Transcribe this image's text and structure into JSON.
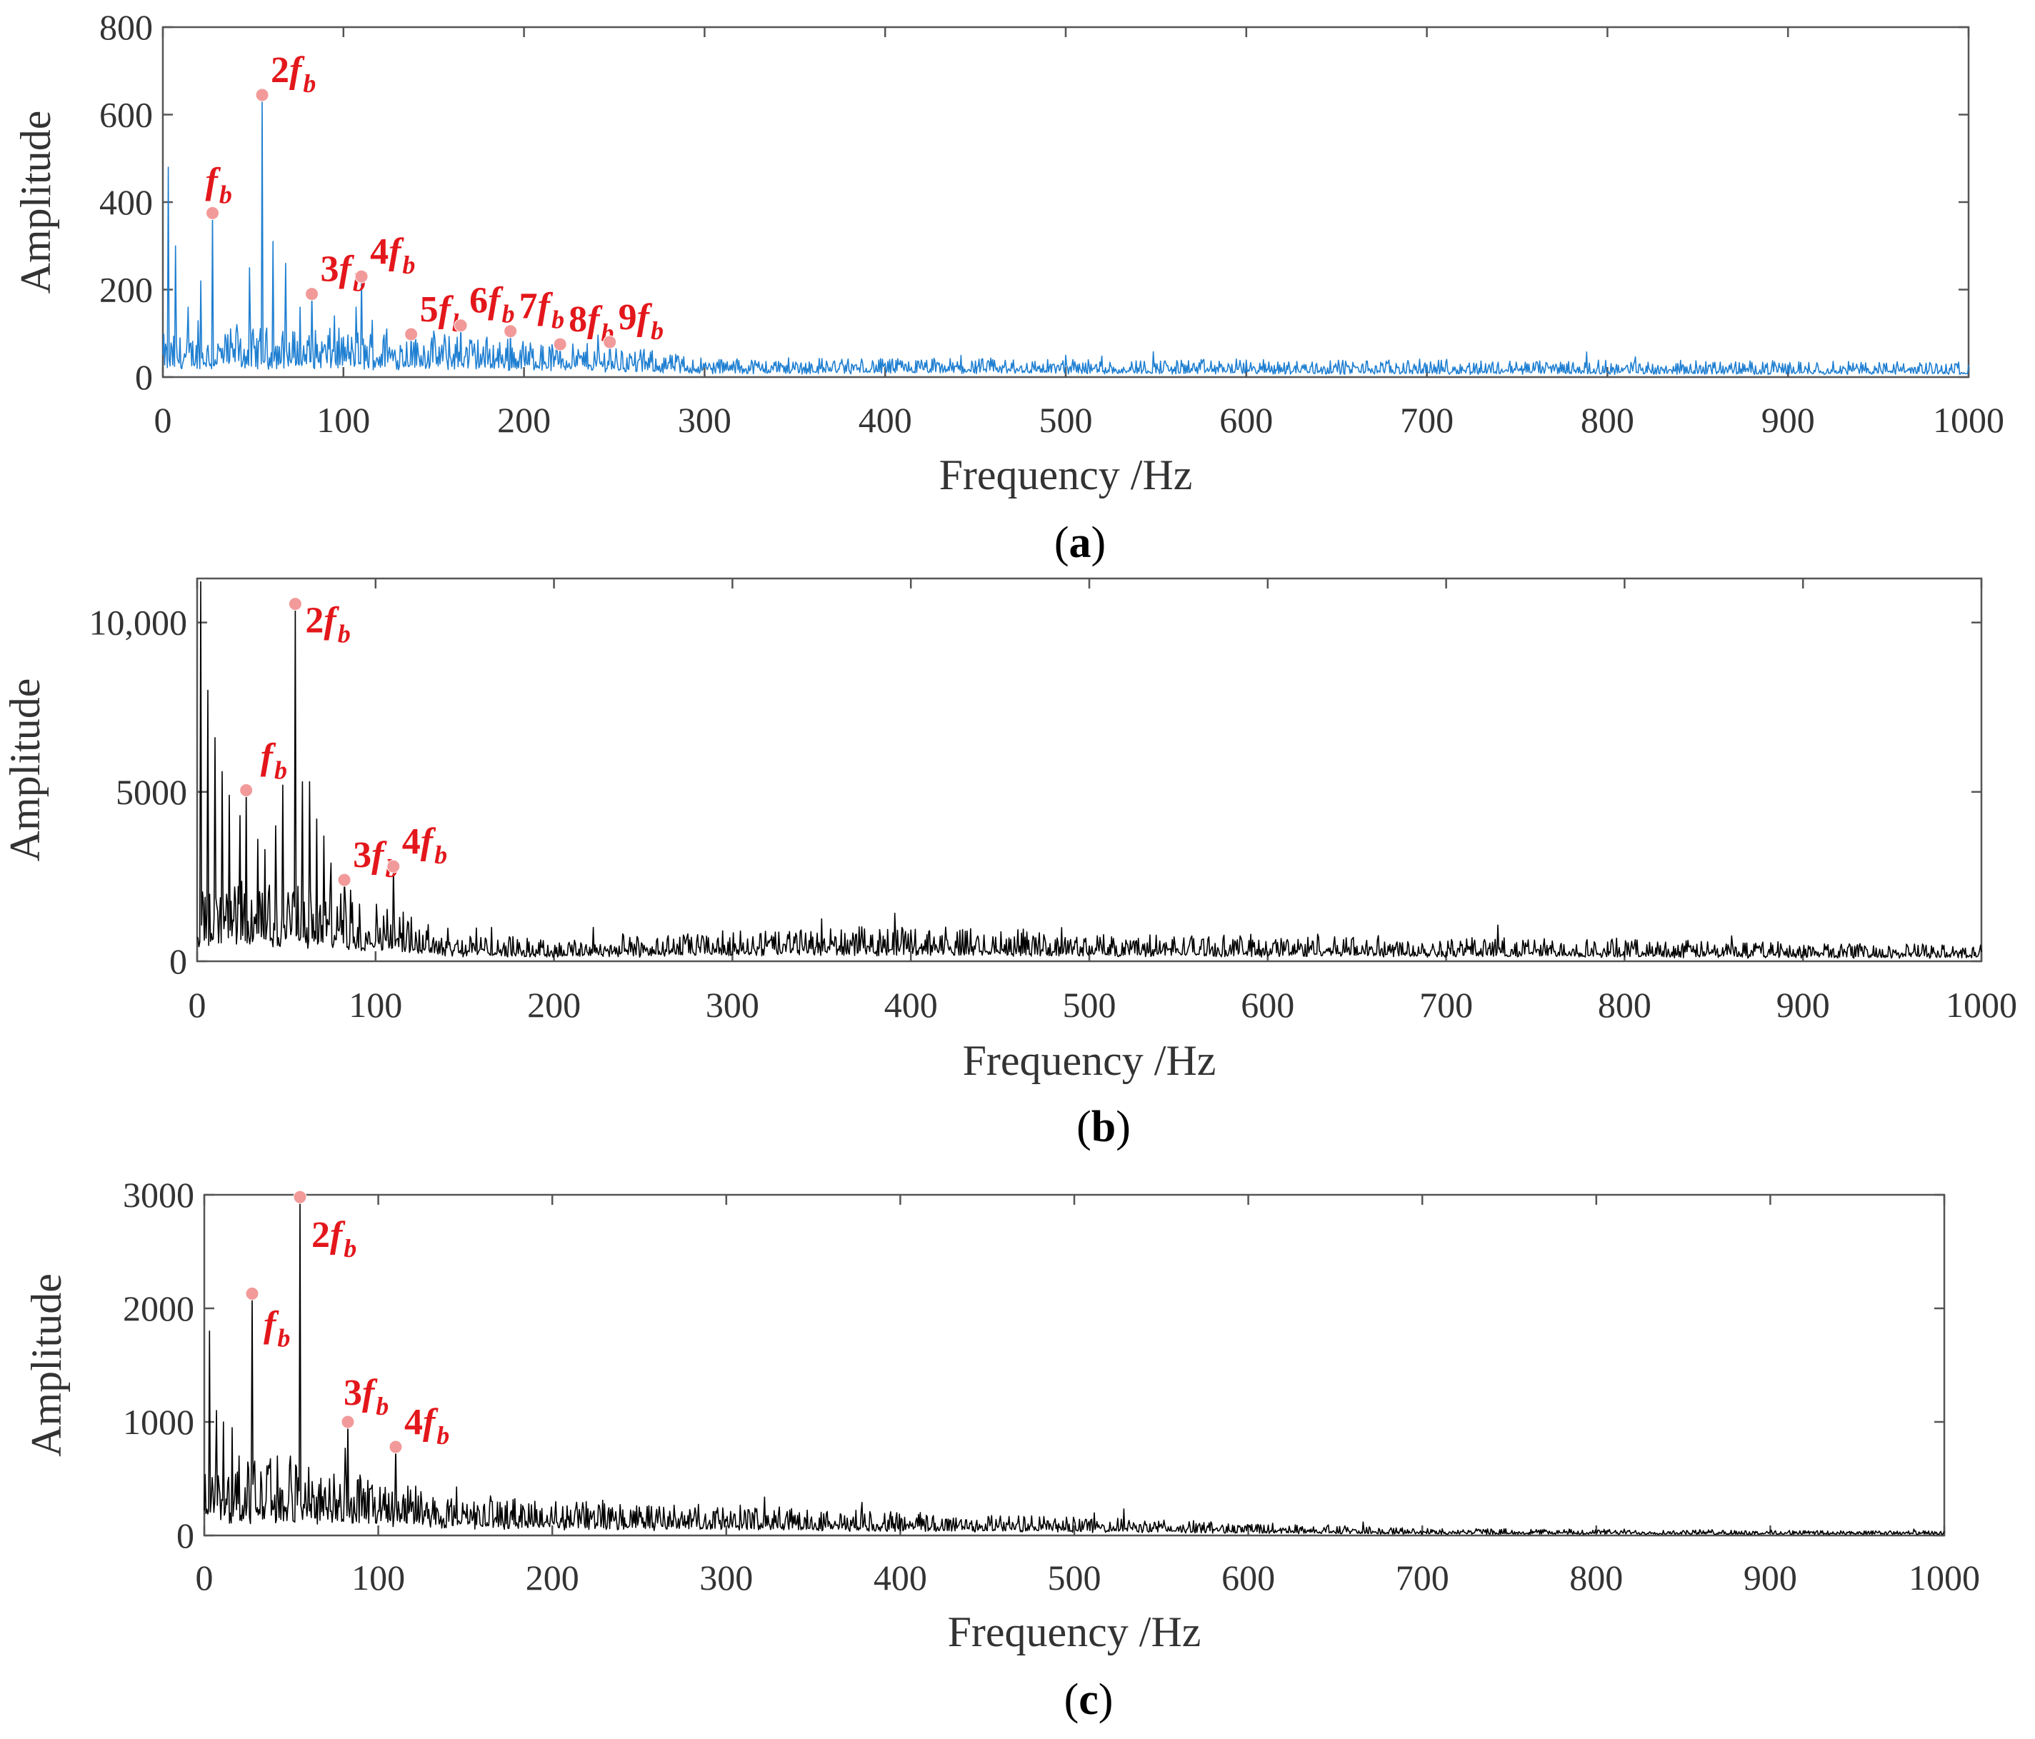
{
  "chart_data": [
    {
      "type": "line",
      "panel_label": "a",
      "xlabel": "Frequency /Hz",
      "ylabel": "Amplitude",
      "xlim": [
        0,
        1000
      ],
      "ylim": [
        0,
        800
      ],
      "xticks": [
        "0",
        "100",
        "200",
        "300",
        "400",
        "500",
        "600",
        "700",
        "800",
        "900",
        "1000"
      ],
      "yticks": [
        {
          "value": 0,
          "label": "0"
        },
        {
          "value": 200,
          "label": "200"
        },
        {
          "value": 400,
          "label": "400"
        },
        {
          "value": 600,
          "label": "600"
        },
        {
          "value": 800,
          "label": "800"
        }
      ],
      "series_color": "#1f7fd1",
      "marker_color": "#f29a9a",
      "label_color": "#e3171b",
      "noise_profile": [
        [
          0,
          60
        ],
        [
          50,
          70
        ],
        [
          150,
          65
        ],
        [
          250,
          45
        ],
        [
          300,
          28
        ],
        [
          600,
          25
        ],
        [
          1000,
          22
        ]
      ],
      "extra_spikes": [
        [
          3,
          480
        ],
        [
          7,
          300
        ],
        [
          14,
          160
        ],
        [
          21,
          220
        ],
        [
          41,
          120
        ],
        [
          48,
          250
        ],
        [
          61,
          310
        ],
        [
          68,
          260
        ],
        [
          76,
          160
        ],
        [
          95,
          140
        ],
        [
          107,
          160
        ],
        [
          116,
          130
        ],
        [
          124,
          110
        ],
        [
          150,
          90
        ],
        [
          500,
          50
        ],
        [
          520,
          48
        ]
      ],
      "peaks": [
        {
          "x": 27.5,
          "y": 375,
          "mult": "",
          "sub": "b"
        },
        {
          "x": 55,
          "y": 645,
          "mult": "2",
          "sub": "b"
        },
        {
          "x": 82.5,
          "y": 190,
          "mult": "3",
          "sub": "b"
        },
        {
          "x": 110,
          "y": 230,
          "mult": "4",
          "sub": "b"
        },
        {
          "x": 137.5,
          "y": 98,
          "mult": "5",
          "sub": "b"
        },
        {
          "x": 165,
          "y": 118,
          "mult": "6",
          "sub": "b"
        },
        {
          "x": 192.5,
          "y": 105,
          "mult": "7",
          "sub": "b"
        },
        {
          "x": 220,
          "y": 75,
          "mult": "8",
          "sub": "b"
        },
        {
          "x": 247.5,
          "y": 80,
          "mult": "9",
          "sub": "b"
        }
      ]
    },
    {
      "type": "line",
      "panel_label": "b",
      "xlabel": "Frequency /Hz",
      "ylabel": "Amplitude",
      "xlim": [
        0,
        1000
      ],
      "ylim": [
        0,
        11300
      ],
      "xticks": [
        "0",
        "100",
        "200",
        "300",
        "400",
        "500",
        "600",
        "700",
        "800",
        "900",
        "1000"
      ],
      "yticks": [
        {
          "value": 0,
          "label": "0"
        },
        {
          "value": 5000,
          "label": "5000"
        },
        {
          "value": 10000,
          "label": "10,000"
        }
      ],
      "series_color": "#000000",
      "marker_color": "#f29a9a",
      "label_color": "#e3171b",
      "noise_profile": [
        [
          0,
          1300
        ],
        [
          50,
          1500
        ],
        [
          100,
          1100
        ],
        [
          150,
          500
        ],
        [
          200,
          400
        ],
        [
          300,
          550
        ],
        [
          400,
          650
        ],
        [
          500,
          500
        ],
        [
          700,
          450
        ],
        [
          1000,
          300
        ]
      ],
      "extra_spikes": [
        [
          2,
          11200
        ],
        [
          6,
          8000
        ],
        [
          10,
          6600
        ],
        [
          14,
          5600
        ],
        [
          18,
          4900
        ],
        [
          24,
          4300
        ],
        [
          34,
          3600
        ],
        [
          38,
          3300
        ],
        [
          44,
          4000
        ],
        [
          48,
          5200
        ],
        [
          59,
          5300
        ],
        [
          63,
          5300
        ],
        [
          67,
          4200
        ],
        [
          71,
          3700
        ],
        [
          75,
          2900
        ],
        [
          86,
          2100
        ],
        [
          120,
          1300
        ],
        [
          165,
          1000
        ],
        [
          222,
          1000
        ],
        [
          395,
          1000
        ],
        [
          463,
          950
        ],
        [
          628,
          800
        ],
        [
          860,
          750
        ]
      ],
      "peaks": [
        {
          "x": 27.5,
          "y": 5050,
          "mult": "",
          "sub": "b"
        },
        {
          "x": 55,
          "y": 10550,
          "mult": "2",
          "sub": "b"
        },
        {
          "x": 82.5,
          "y": 2400,
          "mult": "3",
          "sub": "b"
        },
        {
          "x": 110,
          "y": 2800,
          "mult": "4",
          "sub": "b"
        }
      ]
    },
    {
      "type": "line",
      "panel_label": "c",
      "xlabel": "Frequency /Hz",
      "ylabel": "Amplitude",
      "xlim": [
        0,
        1000
      ],
      "ylim": [
        0,
        3000
      ],
      "xticks": [
        "0",
        "100",
        "200",
        "300",
        "400",
        "500",
        "600",
        "700",
        "800",
        "900",
        "1000"
      ],
      "yticks": [
        {
          "value": 0,
          "label": "0"
        },
        {
          "value": 1000,
          "label": "1000"
        },
        {
          "value": 2000,
          "label": "2000"
        },
        {
          "value": 3000,
          "label": "3000"
        }
      ],
      "series_color": "#000000",
      "marker_color": "#f29a9a",
      "label_color": "#e3171b",
      "noise_profile": [
        [
          0,
          380
        ],
        [
          50,
          420
        ],
        [
          100,
          320
        ],
        [
          150,
          220
        ],
        [
          250,
          170
        ],
        [
          350,
          150
        ],
        [
          500,
          100
        ],
        [
          600,
          70
        ],
        [
          700,
          40
        ],
        [
          1000,
          25
        ]
      ],
      "extra_spikes": [
        [
          3,
          1800
        ],
        [
          7,
          1100
        ],
        [
          11,
          1000
        ],
        [
          16,
          950
        ],
        [
          20,
          700
        ],
        [
          38,
          650
        ],
        [
          42,
          700
        ],
        [
          60,
          600
        ],
        [
          72,
          500
        ],
        [
          250,
          250
        ]
      ],
      "peaks": [
        {
          "x": 27.5,
          "y": 2130,
          "mult": "",
          "sub": "b"
        },
        {
          "x": 55,
          "y": 2980,
          "mult": "2",
          "sub": "b"
        },
        {
          "x": 82.5,
          "y": 1000,
          "mult": "3",
          "sub": "b"
        },
        {
          "x": 110,
          "y": 780,
          "mult": "4",
          "sub": "b"
        }
      ]
    }
  ]
}
